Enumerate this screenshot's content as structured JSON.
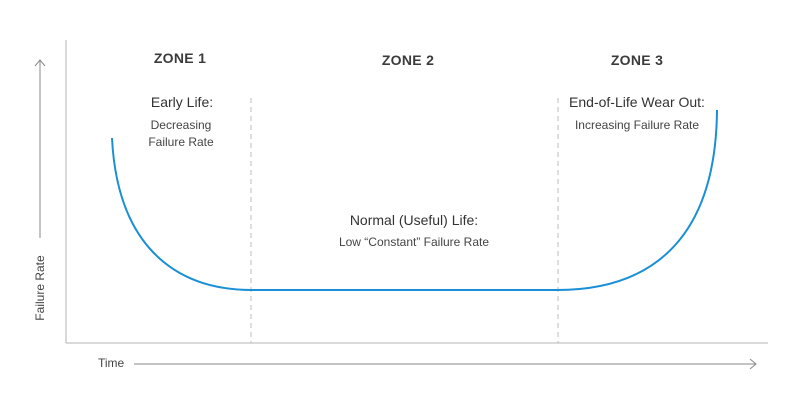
{
  "zones": [
    {
      "heading": "ZONE 1",
      "title": "Early Life:",
      "description": "Decreasing Failure Rate"
    },
    {
      "heading": "ZONE 2",
      "title": "Normal (Useful) Life:",
      "description": "Low “Constant” Failure Rate"
    },
    {
      "heading": "ZONE 3",
      "title": "End-of-Life Wear Out:",
      "description": "Increasing Failure Rate"
    }
  ],
  "axes": {
    "x_label": "Time",
    "y_label": "Failure Rate"
  },
  "colors": {
    "curve": "#1a8fd6",
    "axis": "#b5b5b5",
    "divider": "#bdbdbd",
    "text": "#3a3a3a"
  }
}
